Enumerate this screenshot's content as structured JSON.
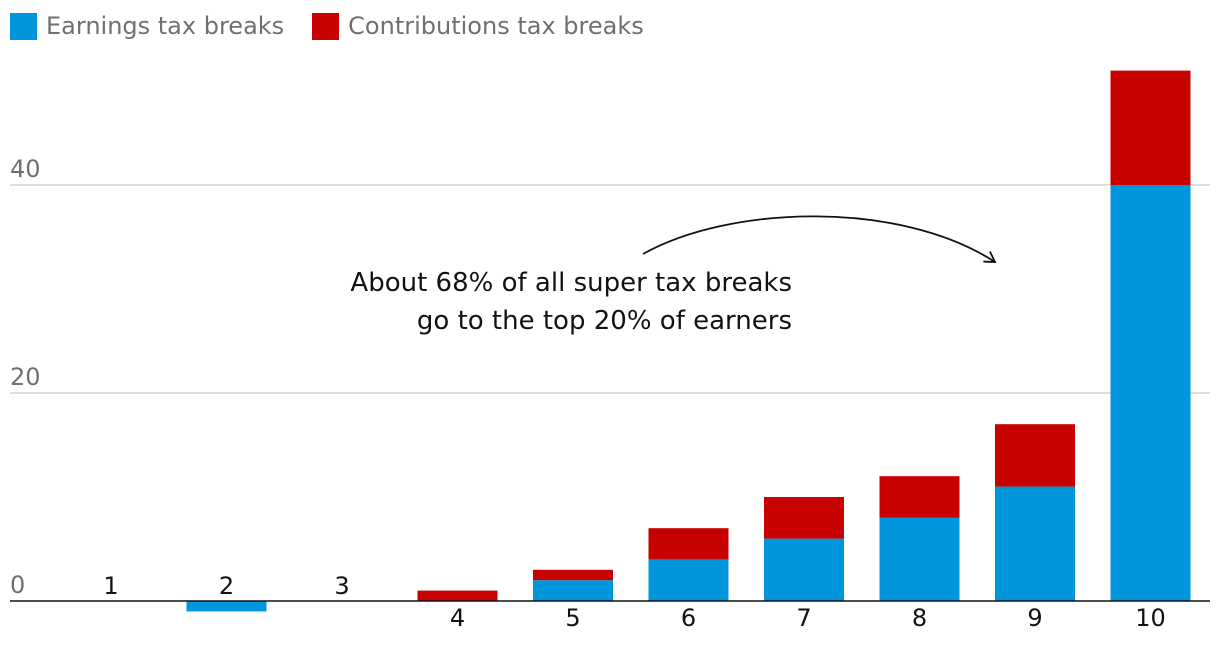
{
  "legend": {
    "items": [
      {
        "label": "Earnings tax breaks",
        "color": "#0096db"
      },
      {
        "label": "Contributions tax breaks",
        "color": "#c70000"
      }
    ]
  },
  "annotation": {
    "line1": "About 68% of all super tax breaks",
    "line2": "go to the top 20% of earners"
  },
  "chart_data": {
    "type": "bar",
    "stacked": true,
    "categories": [
      "1",
      "2",
      "3",
      "4",
      "5",
      "6",
      "7",
      "8",
      "9",
      "10"
    ],
    "series": [
      {
        "name": "Earnings tax breaks",
        "color": "#0096db",
        "values": [
          0,
          -1,
          0,
          0,
          2,
          4,
          6,
          8,
          11,
          40
        ]
      },
      {
        "name": "Contributions tax breaks",
        "color": "#c70000",
        "values": [
          0,
          0,
          0,
          1,
          1,
          3,
          4,
          4,
          6,
          11
        ]
      }
    ],
    "yticks": [
      0,
      20,
      40
    ],
    "ylim": [
      -1.5,
      51
    ],
    "grid": true,
    "legend_position": "top-left",
    "xlabel": "",
    "ylabel": "",
    "title": ""
  }
}
